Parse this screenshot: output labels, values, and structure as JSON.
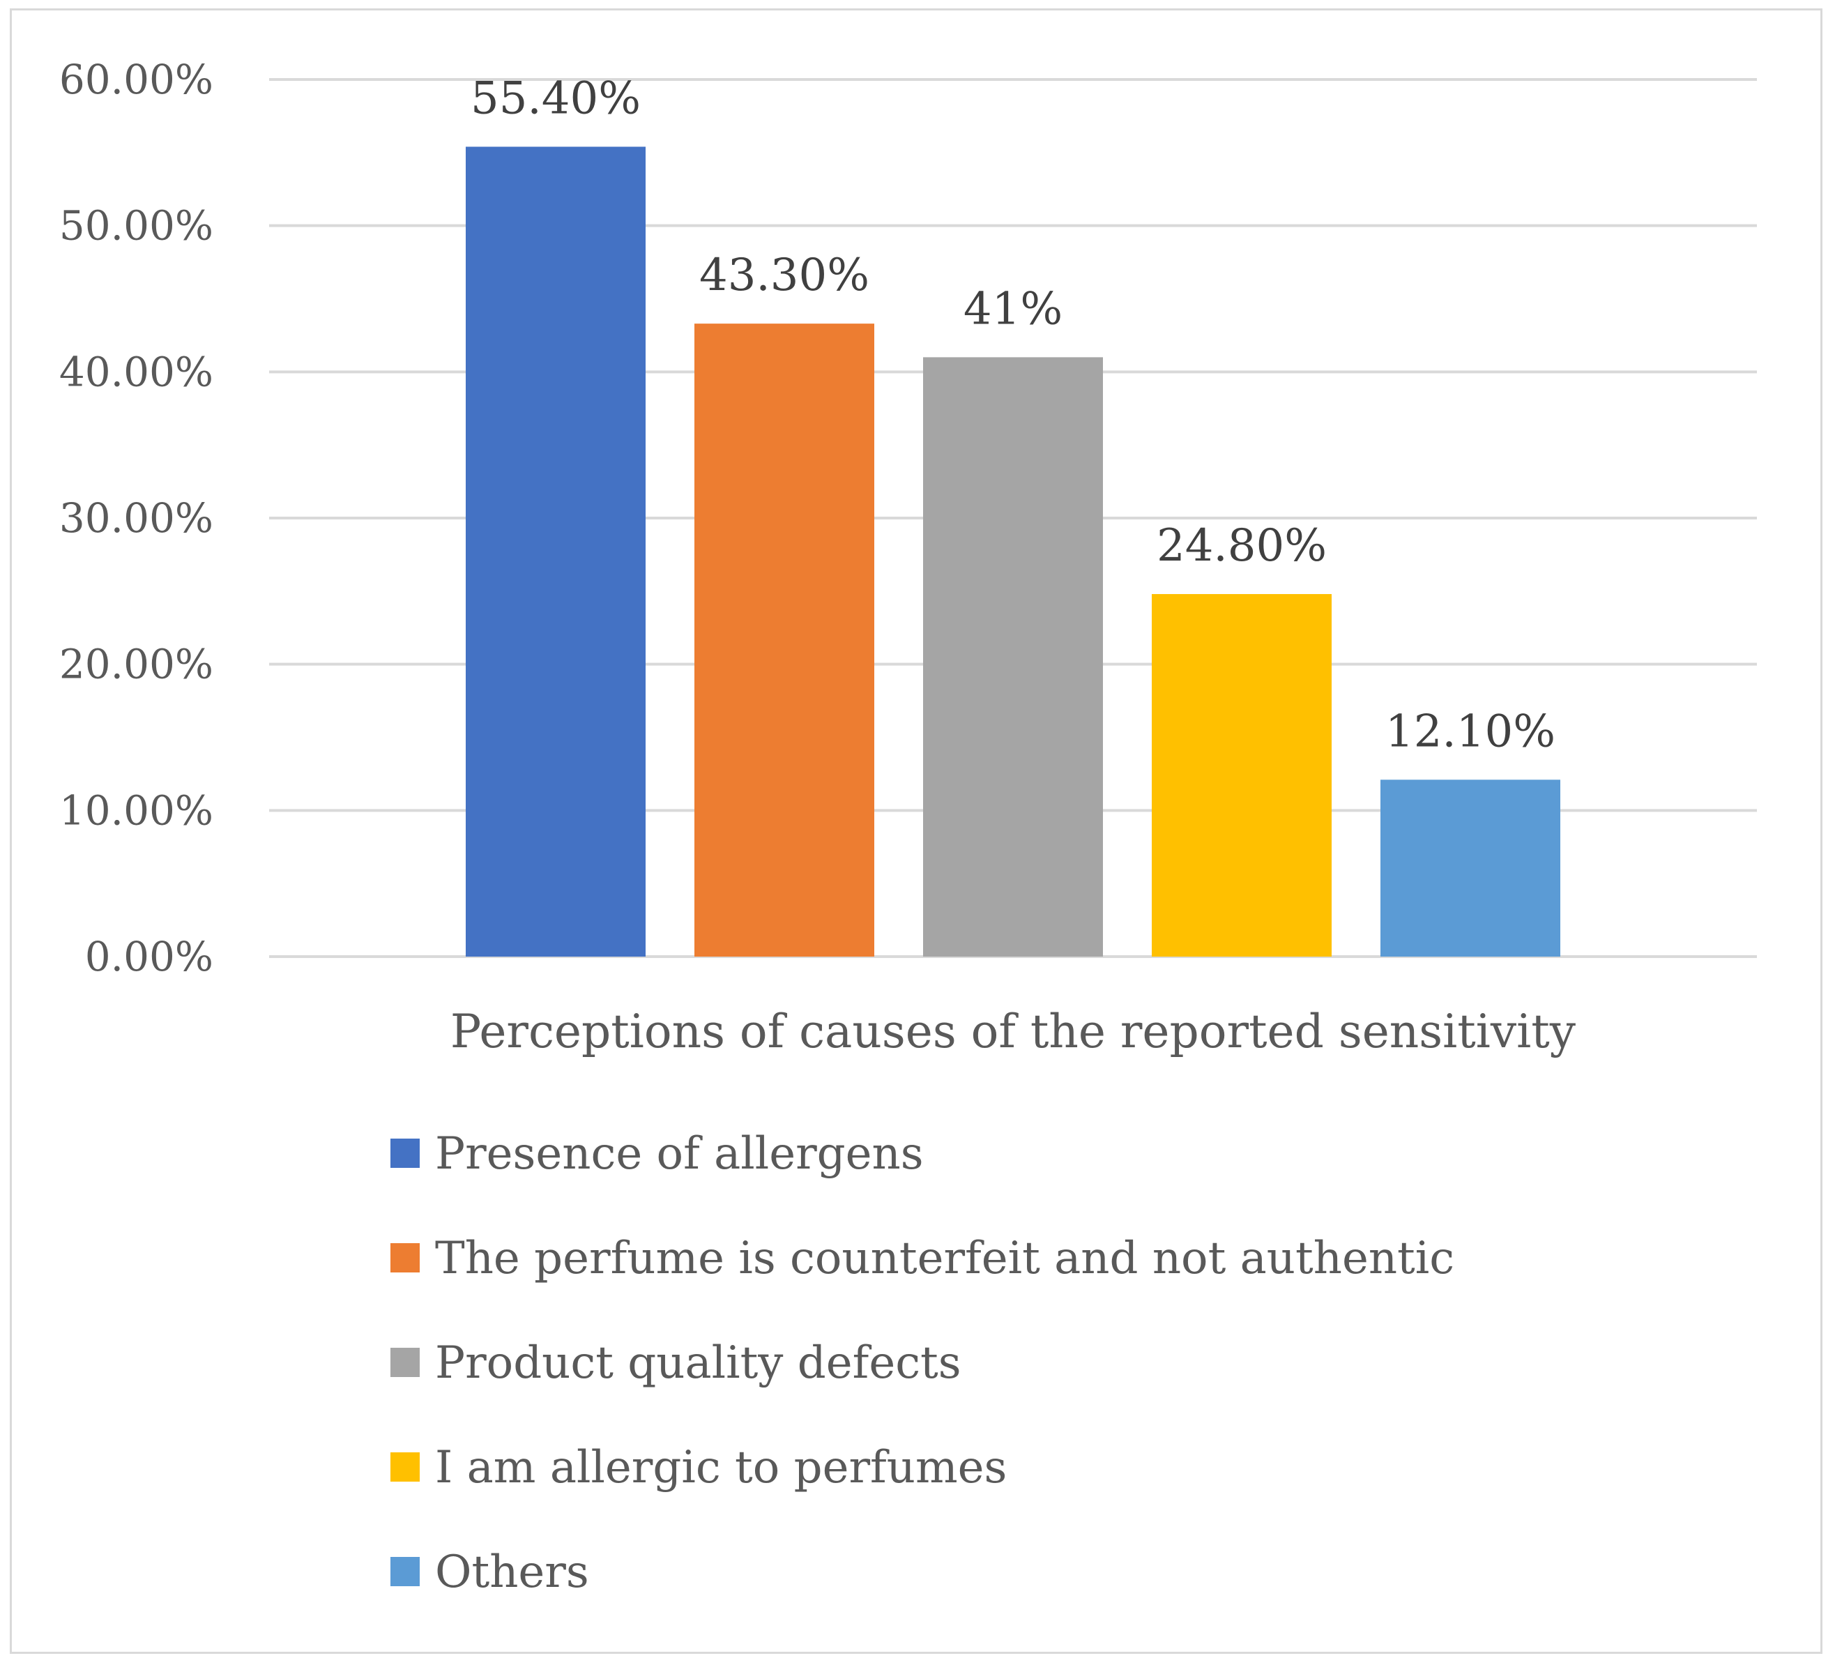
{
  "chart_data": {
    "type": "bar",
    "title": "",
    "xlabel": "Perceptions of causes of the reported sensitivity",
    "ylabel": "",
    "ylim": [
      0,
      0.6
    ],
    "yticks": [
      0,
      0.1,
      0.2,
      0.3,
      0.4,
      0.5,
      0.6
    ],
    "ytick_labels": [
      "0.00%",
      "10.00%",
      "20.00%",
      "30.00%",
      "40.00%",
      "50.00%",
      "60.00%"
    ],
    "grid": true,
    "legend_position": "bottom",
    "series": [
      {
        "name": "Presence of allergens",
        "value": 0.554,
        "label": "55.40%",
        "color": "#4472c4"
      },
      {
        "name": "The perfume is counterfeit and not authentic",
        "value": 0.433,
        "label": "43.30%",
        "color": "#ed7d31"
      },
      {
        "name": "Product quality defects",
        "value": 0.41,
        "label": "41%",
        "color": "#a5a5a5"
      },
      {
        "name": "I am allergic to perfumes",
        "value": 0.248,
        "label": "24.80%",
        "color": "#ffc000"
      },
      {
        "name": "Others",
        "value": 0.121,
        "label": "12.10%",
        "color": "#5b9bd5"
      }
    ]
  }
}
